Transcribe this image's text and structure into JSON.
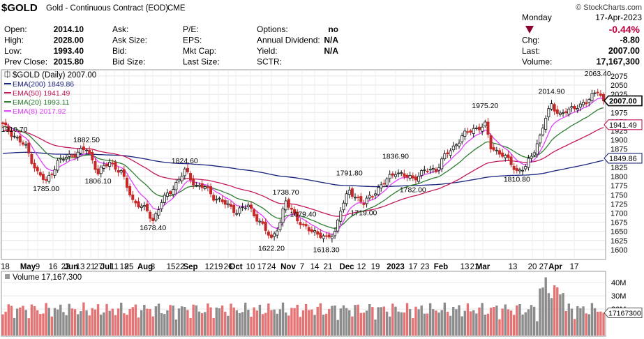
{
  "header": {
    "symbol": "$GOLD",
    "name": "Gold - Continuous Contract (EOD)",
    "exchange": "CME",
    "brand": "© StockCharts.com",
    "date_day": "Monday",
    "date": "17-Apr-2023",
    "change_pct": "-0.44%",
    "change_color": "#c0003c"
  },
  "info_rows": [
    {
      "k1": "Open:",
      "v1": "2014.10",
      "k2": "Ask:",
      "v2": "",
      "k3": "P/E:",
      "v3": "",
      "k4": "Options:",
      "v4": "no",
      "k5": "",
      "v5": ""
    },
    {
      "k1": "High:",
      "v1": "2028.00",
      "k2": "Ask Size:",
      "v2": "",
      "k3": "EPS:",
      "v3": "",
      "k4": "Annual Dividend:",
      "v4": "N/A",
      "k5": "Chg:",
      "v5": "-8.80"
    },
    {
      "k1": "Low:",
      "v1": "1993.40",
      "k2": "Bid:",
      "v2": "",
      "k3": "Mkt Cap:",
      "v3": "",
      "k4": "Yield:",
      "v4": "N/A",
      "k5": "Last:",
      "v5": "2007.00"
    },
    {
      "k1": "Prev Close:",
      "v1": "2015.80",
      "k2": "Bid Size:",
      "v2": "",
      "k3": "Last Size:",
      "v3": "",
      "k4": "SCTR:",
      "v4": "",
      "k5": "Volume:",
      "v5": "17,167,300"
    }
  ],
  "chart_data": [
    {
      "type": "candlestick",
      "title": "$GOLD (Daily) 2007.00",
      "ylim": [
        1575,
        2090
      ],
      "y_ticks": [
        1600,
        1625,
        1650,
        1675,
        1700,
        1725,
        1750,
        1775,
        1800,
        1825,
        1850,
        1875,
        1900,
        1925,
        1950,
        1975,
        2000,
        2025,
        2050,
        2075
      ],
      "x_ticks": [
        "18",
        "May",
        "9",
        "16",
        "23",
        "Jun",
        "13",
        "21",
        "27",
        "Jul",
        "11",
        "18",
        "25",
        "Aug",
        "8",
        "15",
        "22",
        "Sep",
        "12",
        "19",
        "26",
        "Oct",
        "10",
        "17",
        "24",
        "Nov",
        "7",
        "14",
        "21",
        "Dec",
        "12",
        "19",
        "2023",
        "17",
        "23",
        "Feb",
        "13",
        "21",
        "Mar",
        "13",
        "20",
        "27",
        "Apr",
        "17"
      ],
      "bold_x_ticks": [
        "May",
        "Jun",
        "Jul",
        "Aug",
        "Sep",
        "Oct",
        "Nov",
        "Dec",
        "2023",
        "Feb",
        "Mar",
        "Apr"
      ],
      "grid": true,
      "legend_position": "top-left",
      "legend": [
        {
          "label": "EMA(200) 1849.86",
          "color": "#1a237e"
        },
        {
          "label": "EMA(50) 1941.49",
          "color": "#c2185b"
        },
        {
          "label": "EMA(20) 1993.11",
          "color": "#2e7d32"
        },
        {
          "label": "EMA(8) 2017.92",
          "color": "#e040fb"
        }
      ],
      "pivots": [
        {
          "x": 4,
          "y": 1910.7,
          "label": "1910.70",
          "pos": "above"
        },
        {
          "x": 15,
          "y": 1785.0,
          "label": "1785.00",
          "pos": "below"
        },
        {
          "x": 29,
          "y": 1882.5,
          "label": "1882.50",
          "pos": "above"
        },
        {
          "x": 33,
          "y": 1806.1,
          "label": "1806.10",
          "pos": "below"
        },
        {
          "x": 52,
          "y": 1678.4,
          "label": "1678.40",
          "pos": "below"
        },
        {
          "x": 63,
          "y": 1824.6,
          "label": "1824.60",
          "pos": "above"
        },
        {
          "x": 93,
          "y": 1622.2,
          "label": "1622.20",
          "pos": "below"
        },
        {
          "x": 98,
          "y": 1738.7,
          "label": "1738.70",
          "pos": "above"
        },
        {
          "x": 104,
          "y": 1679.4,
          "label": "1679.40",
          "pos": "above"
        },
        {
          "x": 112,
          "y": 1618.3,
          "label": "1618.30",
          "pos": "below"
        },
        {
          "x": 120,
          "y": 1791.8,
          "label": "1791.80",
          "pos": "above"
        },
        {
          "x": 125,
          "y": 1719.0,
          "label": "1719.00",
          "pos": "below"
        },
        {
          "x": 136,
          "y": 1836.9,
          "label": "1836.90",
          "pos": "above"
        },
        {
          "x": 142,
          "y": 1782.0,
          "label": "1782.00",
          "pos": "below"
        },
        {
          "x": 167,
          "y": 1975.2,
          "label": "1975.20",
          "pos": "above"
        },
        {
          "x": 178,
          "y": 1810.8,
          "label": "1810.80",
          "pos": "below"
        },
        {
          "x": 190,
          "y": 2014.9,
          "label": "2014.90",
          "pos": "above"
        },
        {
          "x": 206,
          "y": 2063.4,
          "label": "2063.40",
          "pos": "above"
        }
      ],
      "value_tags": [
        {
          "label": "2007.00",
          "y": 2007.0,
          "style": "black"
        },
        {
          "label": "1941.49",
          "y": 1941.49,
          "style": "red"
        },
        {
          "label": "1849.86",
          "y": 1849.86,
          "style": "navy"
        }
      ],
      "colors": {
        "up": "#111111",
        "down": "#c62828",
        "ema200": "#1a237e",
        "ema50": "#c2185b",
        "ema20": "#2e7d32",
        "ema8": "#e040fb"
      }
    },
    {
      "type": "bar",
      "title": "Volume 17,167,300",
      "ylim": [
        0,
        48
      ],
      "y_ticks": [
        {
          "v": 40,
          "label": "40M"
        },
        {
          "v": 30,
          "label": "30M"
        },
        {
          "v": 20,
          "label": "20M"
        }
      ],
      "last_value_label": "17167300",
      "last_value": 17.17,
      "grid": true,
      "colors": {
        "up": "#8c8c8c",
        "down": "#e57373"
      }
    }
  ]
}
